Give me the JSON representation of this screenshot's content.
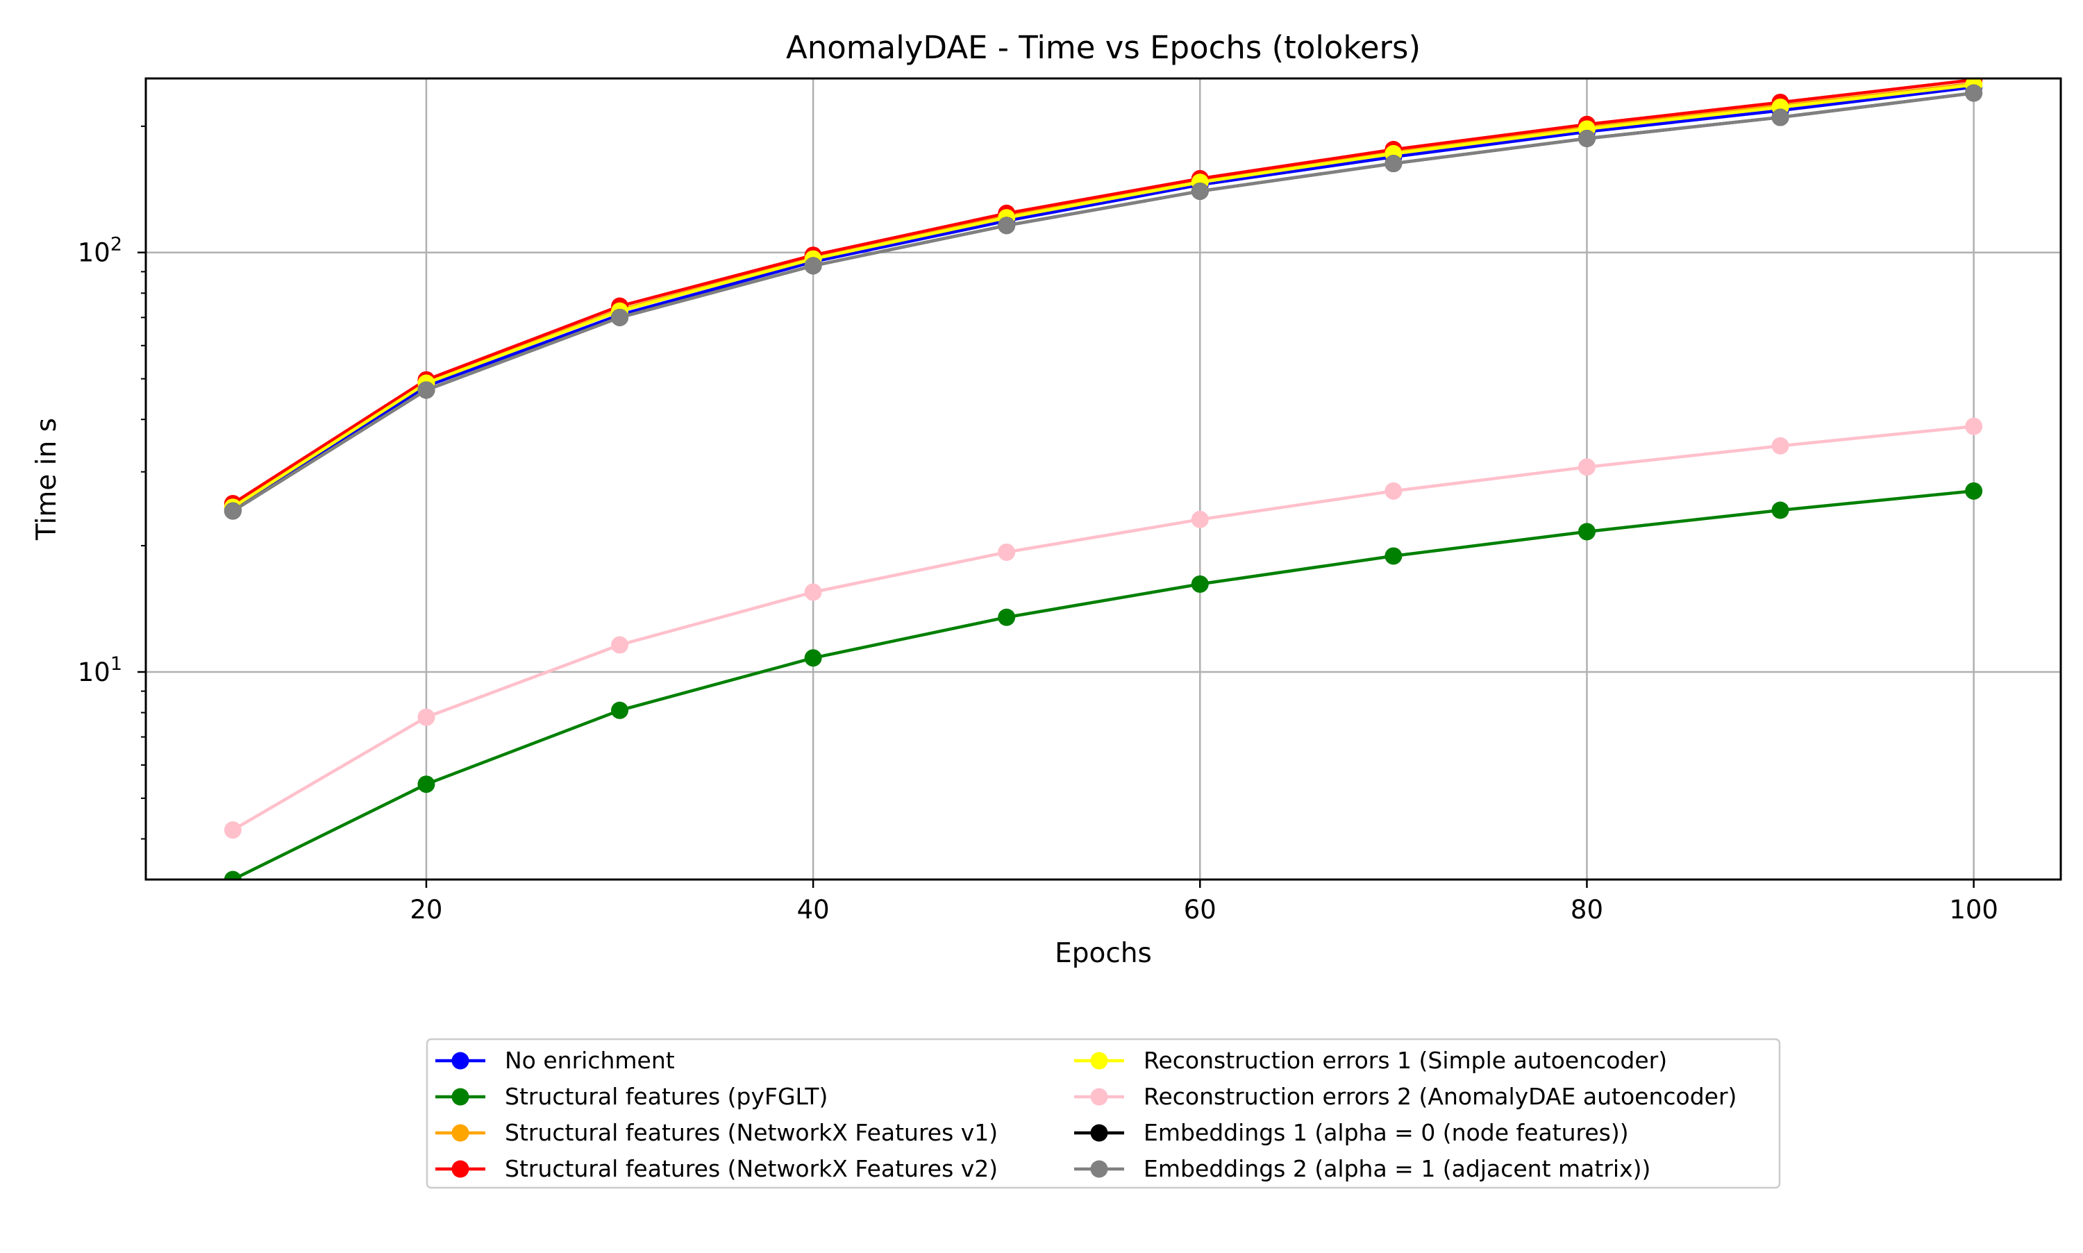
{
  "chart_data": {
    "type": "line",
    "title": "AnomalyDAE - Time vs Epochs (tolokers)",
    "xlabel": "Epochs",
    "ylabel": "Time in s",
    "yscale": "log",
    "xlim": [
      5.5,
      104.5
    ],
    "ylim": [
      3.2,
      260
    ],
    "x": [
      10,
      20,
      30,
      40,
      50,
      60,
      70,
      80,
      90,
      100
    ],
    "xticks": [
      20,
      40,
      60,
      80,
      100
    ],
    "xtick_labels": [
      "20",
      "40",
      "60",
      "80",
      "100"
    ],
    "yticks": [
      {
        "value": 10,
        "base": "10",
        "exp": "1"
      },
      {
        "value": 100,
        "base": "10",
        "exp": "2"
      }
    ],
    "grid": true,
    "legend_position": "bottom-center",
    "legend_columns": 2,
    "series": [
      {
        "name": "No enrichment",
        "color": "#0000ff",
        "values": [
          24.5,
          48,
          71,
          95,
          119,
          145,
          169,
          194,
          218,
          248
        ]
      },
      {
        "name": "Structural features (pyFGLT)",
        "color": "#008000",
        "values": [
          3.2,
          5.4,
          8.1,
          10.8,
          13.5,
          16.2,
          18.9,
          21.6,
          24.3,
          27
        ]
      },
      {
        "name": "Structural features (NetworkX Features v1)",
        "color": "#ffa500",
        "values": [
          24.8,
          49,
          73,
          97,
          122,
          148,
          173,
          199,
          224,
          253
        ]
      },
      {
        "name": "Structural features (NetworkX Features v2)",
        "color": "#ff0000",
        "values": [
          25.2,
          49.7,
          74.5,
          98.5,
          124,
          150,
          176,
          202,
          228,
          258
        ]
      },
      {
        "name": "Reconstruction errors 1 (Simple autoencoder)",
        "color": "#ffff00",
        "values": [
          24.7,
          48.8,
          72.5,
          96.5,
          121,
          147,
          172,
          197,
          222,
          251
        ]
      },
      {
        "name": "Reconstruction errors 2 (AnomalyDAE autoencoder)",
        "color": "#ffc0cb",
        "values": [
          4.2,
          7.8,
          11.6,
          15.5,
          19.3,
          23.1,
          27,
          30.8,
          34.6,
          38.5
        ]
      },
      {
        "name": "Embeddings 1 (alpha = 0 (node features))",
        "color": "#000000",
        "values": [
          24.2,
          47,
          70,
          93,
          116,
          140,
          163,
          187,
          210,
          240
        ]
      },
      {
        "name": "Embeddings 2 (alpha = 1 (adjacent matrix))",
        "color": "#808080",
        "values": [
          24.2,
          47,
          70,
          93,
          116,
          140,
          163,
          187,
          210,
          240
        ]
      }
    ]
  }
}
